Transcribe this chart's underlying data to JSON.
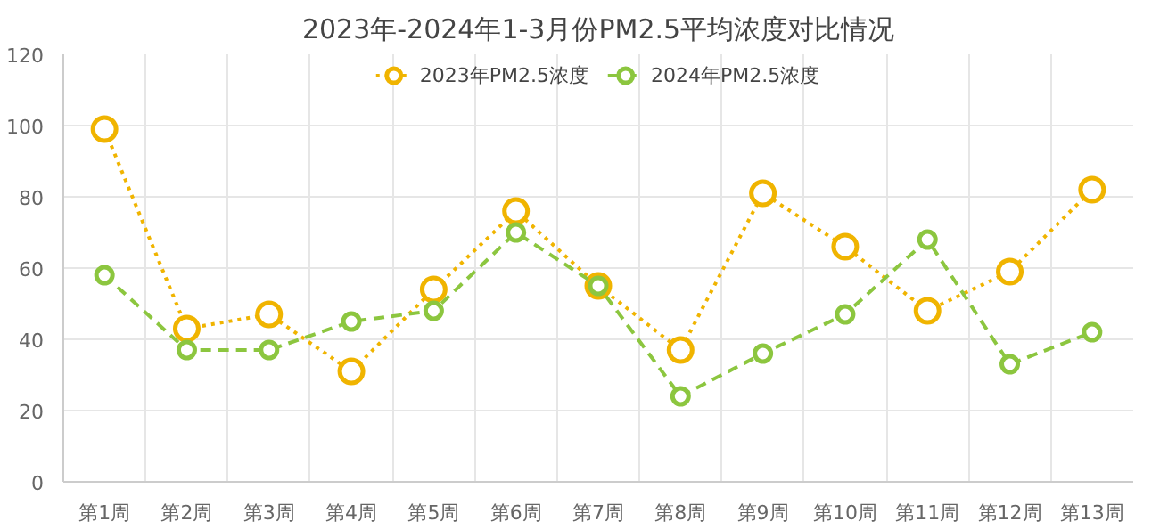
{
  "chart_data": {
    "type": "line",
    "title": "2023年-2024年1-3月份PM2.5平均浓度对比情况",
    "categories": [
      "第1周",
      "第2周",
      "第3周",
      "第4周",
      "第5周",
      "第6周",
      "第7周",
      "第8周",
      "第9周",
      "第10周",
      "第11周",
      "第12周",
      "第13周"
    ],
    "series": [
      {
        "name": "2023年PM2.5浓度",
        "color": "#f0b400",
        "line_style": "dotted",
        "values": [
          99,
          43,
          47,
          31,
          54,
          76,
          55,
          37,
          81,
          66,
          48,
          59,
          82
        ]
      },
      {
        "name": "2024年PM2.5浓度",
        "color": "#8cc63f",
        "line_style": "dashed",
        "values": [
          58,
          37,
          37,
          45,
          48,
          70,
          55,
          24,
          36,
          47,
          68,
          33,
          42
        ]
      }
    ],
    "ylim": [
      0,
      120
    ],
    "yticks": [
      0,
      20,
      40,
      60,
      80,
      100,
      120
    ],
    "grid": true,
    "legend": "top",
    "marker": "circle"
  }
}
